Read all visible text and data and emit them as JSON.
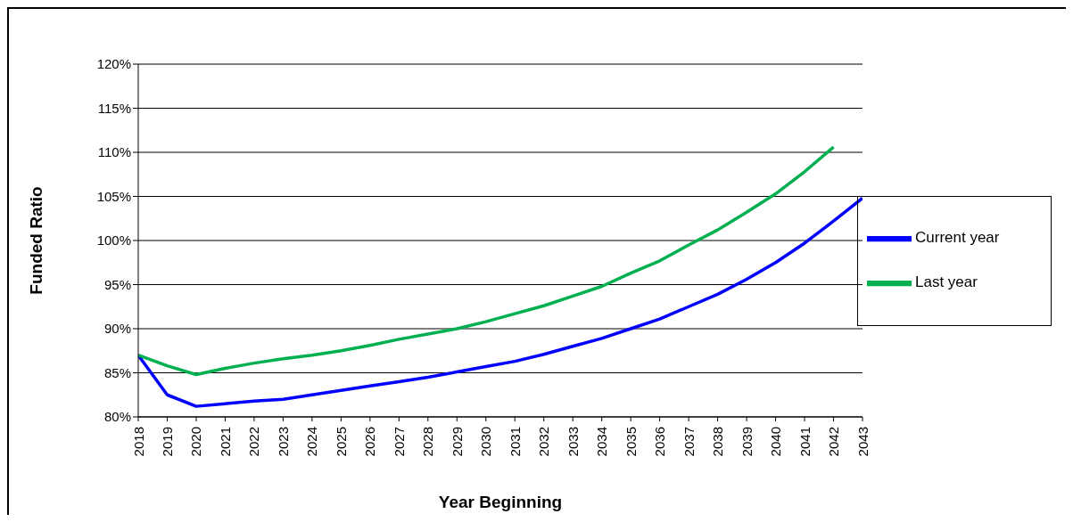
{
  "chart_data": {
    "type": "line",
    "xlabel": "Year Beginning",
    "ylabel": "Funded Ratio",
    "categories": [
      "2018",
      "2019",
      "2020",
      "2021",
      "2022",
      "2023",
      "2024",
      "2025",
      "2026",
      "2027",
      "2028",
      "2029",
      "2030",
      "2031",
      "2032",
      "2033",
      "2034",
      "2035",
      "2036",
      "2037",
      "2038",
      "2039",
      "2040",
      "2041",
      "2042",
      "2043"
    ],
    "series": [
      {
        "name": "Current year",
        "color": "#0000ff",
        "values": [
          87.0,
          82.5,
          81.2,
          81.5,
          81.8,
          82.0,
          82.5,
          83.0,
          83.5,
          84.0,
          84.5,
          85.1,
          85.7,
          86.3,
          87.1,
          88.0,
          88.9,
          90.0,
          91.1,
          92.5,
          93.9,
          95.6,
          97.5,
          99.7,
          102.2,
          104.8
        ]
      },
      {
        "name": "Last year",
        "color": "#00b050",
        "values": [
          87.0,
          85.8,
          84.8,
          85.5,
          86.1,
          86.6,
          87.0,
          87.5,
          88.1,
          88.8,
          89.4,
          90.0,
          90.8,
          91.7,
          92.6,
          93.7,
          94.8,
          96.3,
          97.7,
          99.5,
          101.2,
          103.2,
          105.3,
          107.8,
          110.6,
          null
        ]
      }
    ],
    "ylim": [
      80,
      120
    ],
    "yticks": [
      {
        "value": 80,
        "label": "80%"
      },
      {
        "value": 85,
        "label": "85%"
      },
      {
        "value": 90,
        "label": "90%"
      },
      {
        "value": 95,
        "label": "95%"
      },
      {
        "value": 100,
        "label": "100%"
      },
      {
        "value": 105,
        "label": "105%"
      },
      {
        "value": 110,
        "label": "110%"
      },
      {
        "value": 115,
        "label": "115%"
      },
      {
        "value": 120,
        "label": "120%"
      }
    ],
    "grid": "y",
    "legend": "right",
    "marker": "none",
    "line_style": "solid"
  }
}
